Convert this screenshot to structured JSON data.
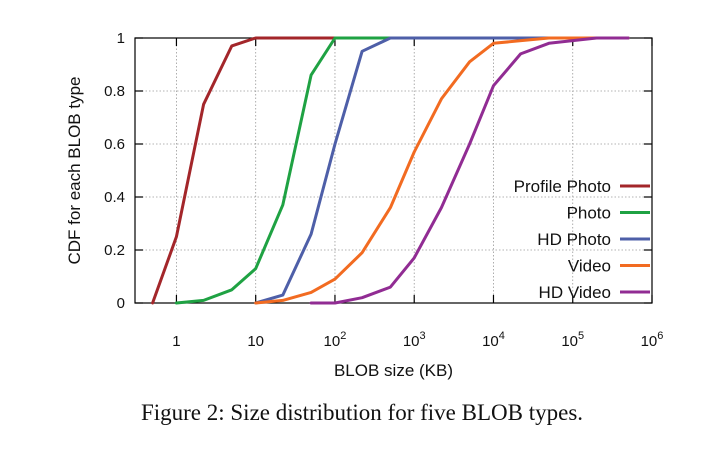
{
  "caption": "Figure 2: Size distribution for five BLOB types.",
  "chart_data": {
    "type": "line",
    "xlabel": "BLOB size (KB)",
    "ylabel": "CDF for each BLOB type",
    "x_scale": "log",
    "xlim": [
      0.3,
      1000000
    ],
    "ylim": [
      0,
      1
    ],
    "grid": true,
    "legend_position": "right",
    "x_ticks": [
      {
        "value": 1,
        "base": "1",
        "exp": ""
      },
      {
        "value": 10,
        "base": "10",
        "exp": ""
      },
      {
        "value": 100,
        "base": "10",
        "exp": "2"
      },
      {
        "value": 1000,
        "base": "10",
        "exp": "3"
      },
      {
        "value": 10000,
        "base": "10",
        "exp": "4"
      },
      {
        "value": 100000,
        "base": "10",
        "exp": "5"
      },
      {
        "value": 1000000,
        "base": "10",
        "exp": "6"
      }
    ],
    "y_ticks": [
      {
        "value": 0,
        "label": "0"
      },
      {
        "value": 0.2,
        "label": "0.2"
      },
      {
        "value": 0.4,
        "label": "0.4"
      },
      {
        "value": 0.6,
        "label": "0.6"
      },
      {
        "value": 0.8,
        "label": "0.8"
      },
      {
        "value": 1,
        "label": "1"
      }
    ],
    "series": [
      {
        "name": "Profile Photo",
        "color": "#a3262a",
        "points": [
          [
            0.5,
            0
          ],
          [
            1,
            0.25
          ],
          [
            2.2,
            0.75
          ],
          [
            5,
            0.97
          ],
          [
            10,
            1.0
          ],
          [
            100,
            1.0
          ],
          [
            500000,
            1.0
          ]
        ]
      },
      {
        "name": "Photo",
        "color": "#1fa243",
        "points": [
          [
            1,
            0
          ],
          [
            2.2,
            0.01
          ],
          [
            5,
            0.05
          ],
          [
            10,
            0.13
          ],
          [
            22,
            0.37
          ],
          [
            50,
            0.86
          ],
          [
            100,
            1.0
          ],
          [
            500000,
            1.0
          ]
        ]
      },
      {
        "name": "HD Photo",
        "color": "#4e5fa8",
        "points": [
          [
            10,
            0
          ],
          [
            22,
            0.03
          ],
          [
            50,
            0.26
          ],
          [
            100,
            0.6
          ],
          [
            220,
            0.95
          ],
          [
            500,
            1.0
          ],
          [
            500000,
            1.0
          ]
        ]
      },
      {
        "name": "Video",
        "color": "#f26b21",
        "points": [
          [
            10,
            0
          ],
          [
            22,
            0.01
          ],
          [
            50,
            0.04
          ],
          [
            100,
            0.09
          ],
          [
            220,
            0.19
          ],
          [
            500,
            0.36
          ],
          [
            1000,
            0.57
          ],
          [
            2200,
            0.77
          ],
          [
            5000,
            0.91
          ],
          [
            10000,
            0.98
          ],
          [
            50000,
            1.0
          ],
          [
            500000,
            1.0
          ]
        ]
      },
      {
        "name": "HD Video",
        "color": "#912c93",
        "points": [
          [
            50,
            0
          ],
          [
            100,
            0
          ],
          [
            220,
            0.02
          ],
          [
            500,
            0.06
          ],
          [
            1000,
            0.17
          ],
          [
            2200,
            0.36
          ],
          [
            5000,
            0.6
          ],
          [
            10000,
            0.82
          ],
          [
            22000,
            0.94
          ],
          [
            50000,
            0.98
          ],
          [
            100000,
            0.99
          ],
          [
            200000,
            1.0
          ],
          [
            500000,
            1.0
          ]
        ]
      }
    ]
  }
}
